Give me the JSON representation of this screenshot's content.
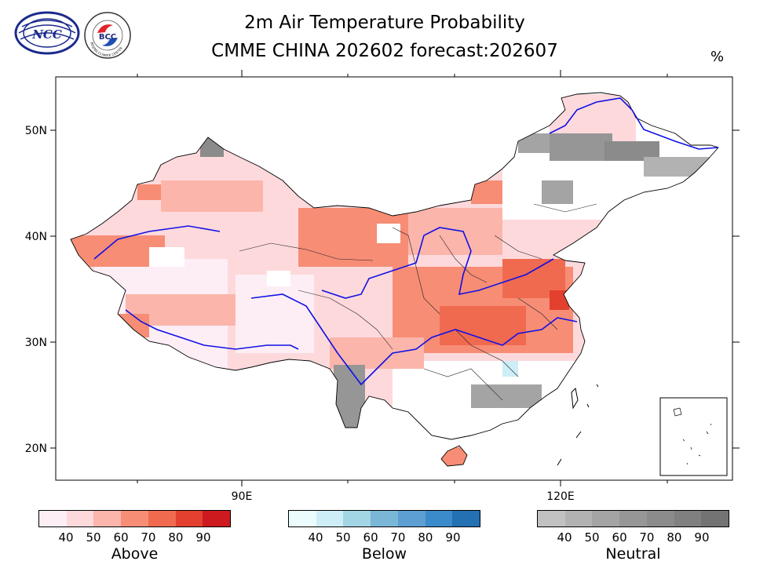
{
  "title_line1": "2m Air Temperature Probability",
  "title_line2": "CMME CHINA 202602 forecast:202607",
  "unit": "%",
  "logos": {
    "left": "NCC",
    "right": "BCC",
    "right_ring_text": "BEIJING CLIMATE CENTER"
  },
  "axes": {
    "lat_labels": [
      "50N",
      "40N",
      "30N",
      "20N"
    ],
    "lon_labels": [
      "90E",
      "120E"
    ]
  },
  "legends": [
    {
      "name": "Above",
      "colors": [
        "#fdeef5",
        "#fdd9dc",
        "#fbb5ab",
        "#f78d75",
        "#f06a50",
        "#e3402f",
        "#cc1a1f"
      ],
      "ticks": [
        "40",
        "50",
        "60",
        "70",
        "80",
        "90"
      ]
    },
    {
      "name": "Below",
      "colors": [
        "#ecfbfd",
        "#cdeef7",
        "#a2d6e4",
        "#7ab7d6",
        "#5d9fd3",
        "#3b8bcb",
        "#2370b3"
      ],
      "ticks": [
        "40",
        "50",
        "60",
        "70",
        "80",
        "90"
      ]
    },
    {
      "name": "Neutral",
      "colors": [
        "#c1c1c1",
        "#b2b2b2",
        "#a4a4a4",
        "#969696",
        "#8b8b8b",
        "#808080",
        "#737373"
      ],
      "ticks": [
        "40",
        "50",
        "60",
        "70",
        "80",
        "90"
      ]
    }
  ],
  "colors": {
    "river": "#1010e6",
    "border": "#000000"
  }
}
